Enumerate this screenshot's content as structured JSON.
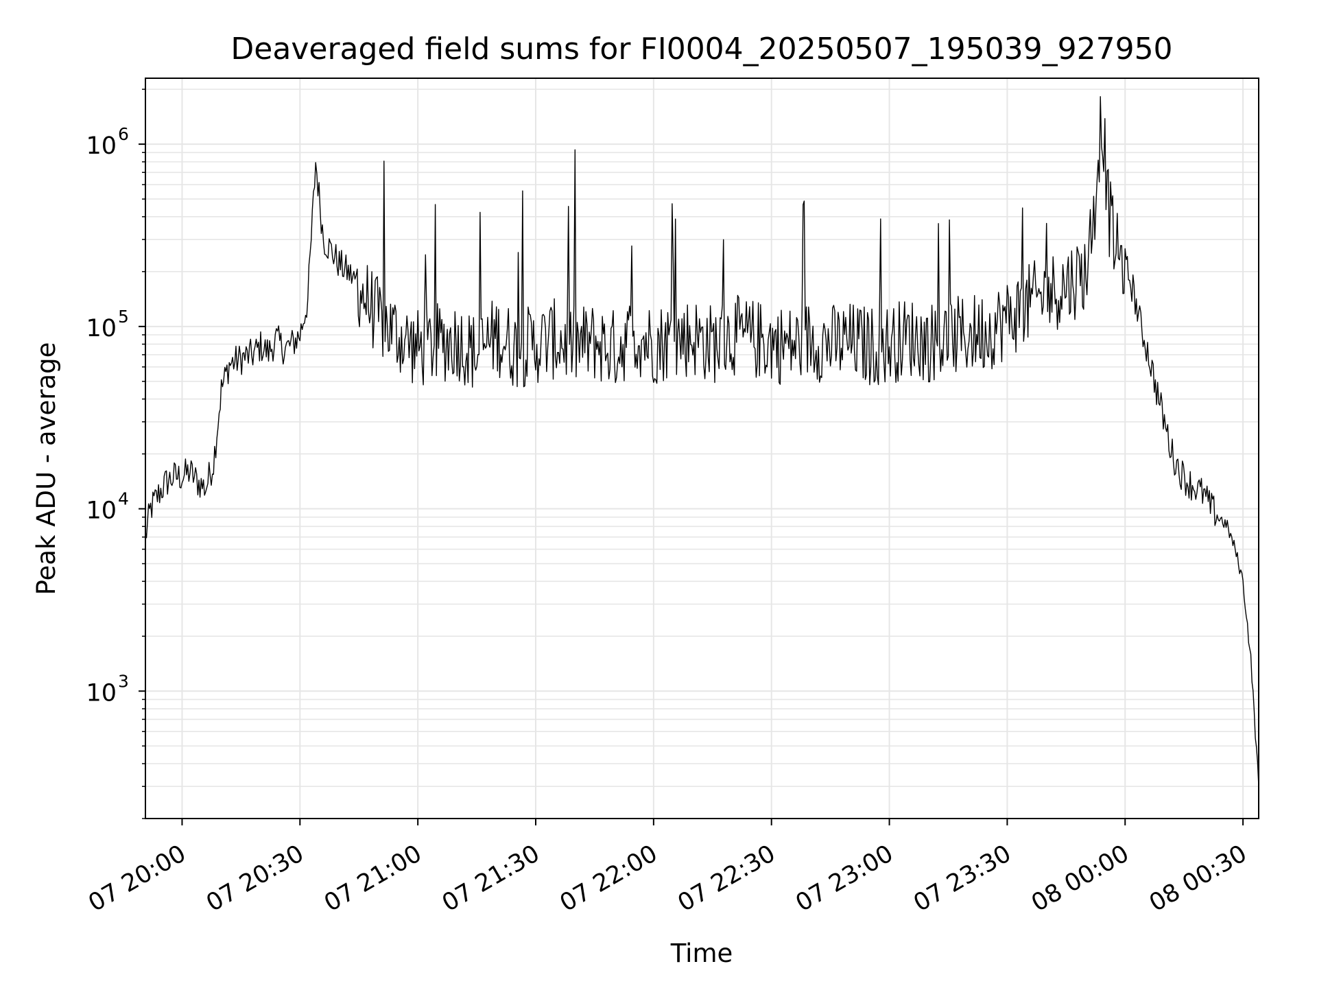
{
  "chart_data": {
    "type": "line",
    "title": "Deaveraged field sums for FI0004_20250507_195039_927950",
    "xlabel": "Time",
    "ylabel": "Peak ADU - average",
    "yscale": "log",
    "ylim": [
      200,
      2300000
    ],
    "xlim": [
      "2025-05-07T19:50:40",
      "2025-05-08T00:34:00"
    ],
    "grid": true,
    "line_color": "#000000",
    "grid_color": "#e6e6e6",
    "x_ticks": [
      {
        "t": "2025-05-07T20:00:00",
        "label": "07 20:00"
      },
      {
        "t": "2025-05-07T20:30:00",
        "label": "07 20:30"
      },
      {
        "t": "2025-05-07T21:00:00",
        "label": "07 21:00"
      },
      {
        "t": "2025-05-07T21:30:00",
        "label": "07 21:30"
      },
      {
        "t": "2025-05-07T22:00:00",
        "label": "07 22:00"
      },
      {
        "t": "2025-05-07T22:30:00",
        "label": "07 22:30"
      },
      {
        "t": "2025-05-07T23:00:00",
        "label": "07 23:00"
      },
      {
        "t": "2025-05-07T23:30:00",
        "label": "07 23:30"
      },
      {
        "t": "2025-05-08T00:00:00",
        "label": "08 00:00"
      },
      {
        "t": "2025-05-08T00:30:00",
        "label": "08 00:30"
      }
    ],
    "y_ticks": [
      {
        "value": 1000,
        "base": "10",
        "exp": "3"
      },
      {
        "value": 10000,
        "base": "10",
        "exp": "4"
      },
      {
        "value": 100000,
        "base": "10",
        "exp": "5"
      },
      {
        "value": 1000000,
        "base": "10",
        "exp": "6"
      }
    ],
    "series": [
      {
        "x": [
          "2025-05-07T19:50:40",
          "2025-05-07T19:52:00",
          "2025-05-07T19:54:00",
          "2025-05-07T19:56:00",
          "2025-05-07T19:58:00",
          "2025-05-07T20:00:00",
          "2025-05-07T20:02:00",
          "2025-05-07T20:04:00",
          "2025-05-07T20:06:00",
          "2025-05-07T20:08:00",
          "2025-05-07T20:10:00",
          "2025-05-07T20:12:00",
          "2025-05-07T20:14:00",
          "2025-05-07T20:16:00",
          "2025-05-07T20:18:00",
          "2025-05-07T20:20:00",
          "2025-05-07T20:22:00",
          "2025-05-07T20:24:00",
          "2025-05-07T20:26:00",
          "2025-05-07T20:28:00",
          "2025-05-07T20:30:00",
          "2025-05-07T20:32:00",
          "2025-05-07T20:34:00",
          "2025-05-07T20:36:00",
          "2025-05-07T20:38:00",
          "2025-05-07T20:40:00",
          "2025-05-07T20:42:00",
          "2025-05-07T20:44:00",
          "2025-05-07T20:46:00",
          "2025-05-07T20:48:00",
          "2025-05-07T20:50:00",
          "2025-05-07T20:55:00",
          "2025-05-07T21:00:00",
          "2025-05-07T21:05:00",
          "2025-05-07T21:10:00",
          "2025-05-07T21:15:00",
          "2025-05-07T21:20:00",
          "2025-05-07T21:25:00",
          "2025-05-07T21:30:00",
          "2025-05-07T21:35:00",
          "2025-05-07T21:40:00",
          "2025-05-07T21:45:00",
          "2025-05-07T21:50:00",
          "2025-05-07T21:55:00",
          "2025-05-07T22:00:00",
          "2025-05-07T22:05:00",
          "2025-05-07T22:10:00",
          "2025-05-07T22:15:00",
          "2025-05-07T22:20:00",
          "2025-05-07T22:25:00",
          "2025-05-07T22:30:00",
          "2025-05-07T22:35:00",
          "2025-05-07T22:40:00",
          "2025-05-07T22:45:00",
          "2025-05-07T22:50:00",
          "2025-05-07T22:55:00",
          "2025-05-07T23:00:00",
          "2025-05-07T23:05:00",
          "2025-05-07T23:10:00",
          "2025-05-07T23:15:00",
          "2025-05-07T23:20:00",
          "2025-05-07T23:25:00",
          "2025-05-07T23:30:00",
          "2025-05-07T23:35:00",
          "2025-05-07T23:40:00",
          "2025-05-07T23:45:00",
          "2025-05-07T23:50:00",
          "2025-05-07T23:52:00",
          "2025-05-07T23:54:00",
          "2025-05-07T23:56:00",
          "2025-05-07T23:58:00",
          "2025-05-08T00:00:00",
          "2025-05-08T00:02:00",
          "2025-05-08T00:04:00",
          "2025-05-08T00:06:00",
          "2025-05-08T00:08:00",
          "2025-05-08T00:10:00",
          "2025-05-08T00:12:00",
          "2025-05-08T00:14:00",
          "2025-05-08T00:16:00",
          "2025-05-08T00:18:00",
          "2025-05-08T00:20:00",
          "2025-05-08T00:22:00",
          "2025-05-08T00:24:00",
          "2025-05-08T00:26:00",
          "2025-05-08T00:28:00",
          "2025-05-08T00:30:00",
          "2025-05-08T00:32:00",
          "2025-05-08T00:34:00"
        ],
        "y": [
          7000,
          10000,
          12000,
          14000,
          15000,
          15000,
          16000,
          14000,
          13000,
          18000,
          45000,
          62000,
          65000,
          68000,
          70000,
          78000,
          72000,
          85000,
          75000,
          80000,
          90000,
          140000,
          800000,
          300000,
          260000,
          220000,
          200000,
          180000,
          150000,
          130000,
          110000,
          90000,
          75000,
          80000,
          85000,
          70000,
          90000,
          75000,
          80000,
          85000,
          78000,
          82000,
          75000,
          90000,
          80000,
          85000,
          88000,
          80000,
          90000,
          85000,
          82000,
          78000,
          85000,
          80000,
          82000,
          78000,
          80000,
          88000,
          82000,
          85000,
          90000,
          95000,
          110000,
          130000,
          150000,
          170000,
          200000,
          400000,
          1500000,
          400000,
          250000,
          220000,
          160000,
          100000,
          70000,
          45000,
          30000,
          20000,
          16000,
          14000,
          13000,
          12000,
          10000,
          9000,
          8000,
          6000,
          4000,
          1500,
          300
        ]
      }
    ]
  }
}
